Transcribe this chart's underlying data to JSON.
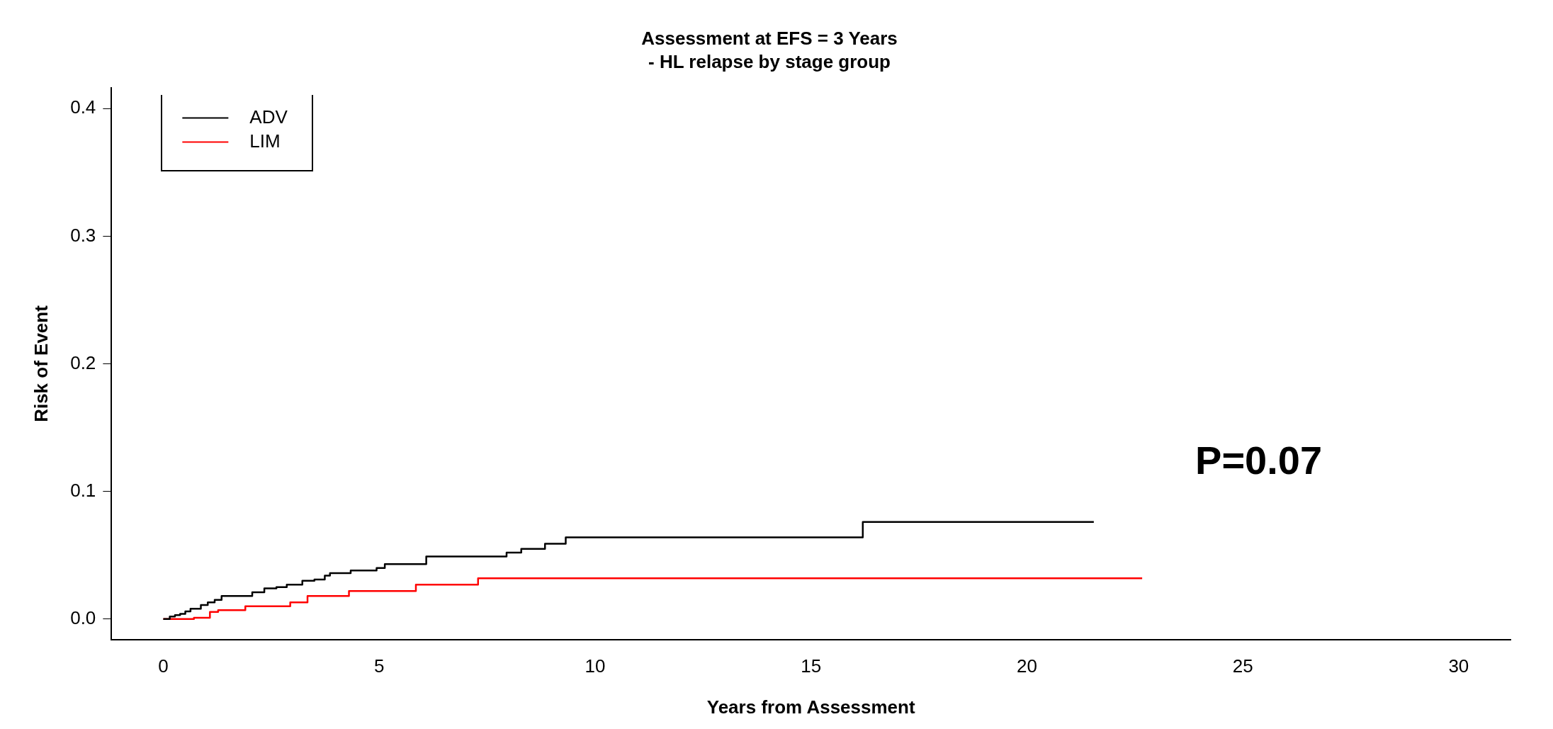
{
  "chart_data": {
    "type": "step",
    "title": "Assessment at EFS = 3 Years",
    "subtitle": "- HL relapse by stage group",
    "xlabel": "Years from Assessment",
    "ylabel": "Risk of Event",
    "series": [
      {
        "name": "ADV",
        "color": "#000000",
        "x": [
          0,
          0.15,
          0.27,
          0.39,
          0.51,
          0.63,
          0.87,
          1.03,
          1.19,
          1.35,
          2.06,
          2.34,
          2.62,
          2.86,
          3.22,
          3.5,
          3.74,
          3.86,
          4.34,
          4.94,
          5.13,
          6.09,
          7.95,
          8.29,
          8.84,
          9.32,
          16.2,
          21.55
        ],
        "values": [
          0,
          0.002,
          0.003,
          0.004,
          0.006,
          0.008,
          0.011,
          0.013,
          0.015,
          0.018,
          0.021,
          0.024,
          0.025,
          0.027,
          0.03,
          0.031,
          0.034,
          0.036,
          0.038,
          0.04,
          0.043,
          0.049,
          0.052,
          0.055,
          0.059,
          0.064,
          0.076,
          0.076
        ]
      },
      {
        "name": "LIM",
        "color": "#ff0000",
        "x": [
          0,
          0.71,
          1.08,
          1.27,
          1.9,
          2.94,
          3.34,
          4.3,
          5.85,
          7.29,
          22.67
        ],
        "values": [
          0,
          0.001,
          0.0055,
          0.007,
          0.01,
          0.013,
          0.018,
          0.022,
          0.027,
          0.032,
          0.032
        ]
      }
    ],
    "xlim": [
      -1.2,
      31.2
    ],
    "xticks": [
      0,
      5,
      10,
      15,
      20,
      25,
      30
    ],
    "ylim": [
      -0.016,
      0.416
    ],
    "yticks": [
      {
        "value": 0,
        "label": "0.0"
      },
      {
        "value": 0.1,
        "label": "0.1"
      },
      {
        "value": 0.2,
        "label": "0.2"
      },
      {
        "value": 0.3,
        "label": "0.3"
      },
      {
        "value": 0.4,
        "label": "0.4"
      }
    ],
    "legend": "top left",
    "grid": false,
    "marker": "none",
    "line_style": "solid",
    "annotations": [
      "P=0.07"
    ]
  }
}
